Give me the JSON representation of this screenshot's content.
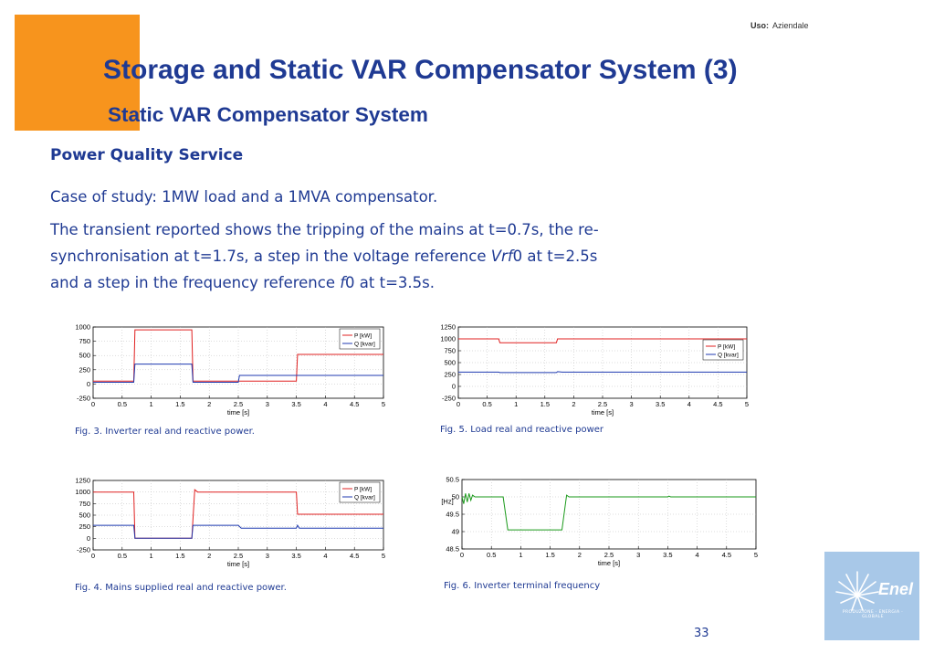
{
  "header": {
    "uso_label": "Uso:",
    "uso_value": "Aziendale",
    "title": "Storage and Static VAR Compensator System (3)",
    "subtitle": "Static VAR Compensator System"
  },
  "body": {
    "section_heading": "Power Quality Service",
    "case_of_study": "Case of study: 1MW load and a 1MVA compensator.",
    "transient_line1": "The transient reported shows the tripping of the mains at t=0.7s, the re-",
    "transient_line2_a": "synchronisation at t=1.7s, a step in the voltage reference ",
    "transient_line2_em": "Vrf",
    "transient_line2_b": "0 at t=2.5s",
    "transient_line3_a": "and a step in the frequency reference ",
    "transient_line3_em": "f",
    "transient_line3_b": "0 at t=3.5s."
  },
  "captions": {
    "fig3": "Fig. 3. Inverter real and reactive power.",
    "fig4": "Fig. 4. Mains supplied real and reactive power.",
    "fig5": "Fig. 5. Load real and reactive power",
    "fig6": "Fig. 6. Inverter terminal frequency"
  },
  "footer": {
    "page_number": "33",
    "logo_name": "Enel",
    "logo_subtitle": "PRODUZIONE · ENERGIA · GLOBALE"
  },
  "colors": {
    "title_blue": "#1f3a93",
    "accent_orange": "#f7941d",
    "real_power": "#e02020",
    "reactive_power": "#1f3ab0",
    "frequency": "#1a9a1a",
    "logo_bg": "#a8c8e8"
  },
  "chart_data": [
    {
      "id": "fig3",
      "type": "line",
      "xlabel": "time [s]",
      "ylabel": "",
      "xlim": [
        0,
        5
      ],
      "ylim": [
        -250,
        1000
      ],
      "xticks": [
        "0",
        "0.5",
        "1",
        "1.5",
        "2",
        "2.5",
        "3",
        "3.5",
        "4",
        "4.5",
        "5"
      ],
      "yticks": [
        "1000",
        "750",
        "500",
        "250",
        "0",
        "-250"
      ],
      "grid": true,
      "legend": "top-right",
      "series": [
        {
          "name": "P [kW]",
          "color": "#e02020",
          "points": [
            [
              0,
              50
            ],
            [
              0.7,
              50
            ],
            [
              0.72,
              950
            ],
            [
              1.7,
              950
            ],
            [
              1.72,
              50
            ],
            [
              2.5,
              50
            ],
            [
              3.5,
              50
            ],
            [
              3.52,
              520
            ],
            [
              5,
              520
            ]
          ]
        },
        {
          "name": "Q [kvar]",
          "color": "#1f3ab0",
          "points": [
            [
              0,
              30
            ],
            [
              0.7,
              30
            ],
            [
              0.72,
              350
            ],
            [
              1.7,
              350
            ],
            [
              1.72,
              30
            ],
            [
              2.5,
              30
            ],
            [
              2.52,
              150
            ],
            [
              3.5,
              150
            ],
            [
              3.52,
              150
            ],
            [
              5,
              150
            ]
          ]
        }
      ]
    },
    {
      "id": "fig4",
      "type": "line",
      "xlabel": "time [s]",
      "ylabel": "",
      "xlim": [
        0,
        5
      ],
      "ylim": [
        -250,
        1250
      ],
      "xticks": [
        "0",
        "0.5",
        "1",
        "1.5",
        "2",
        "2.5",
        "3",
        "3.5",
        "4",
        "4.5",
        "5"
      ],
      "yticks": [
        "1250",
        "1000",
        "750",
        "500",
        "250",
        "0",
        "-250"
      ],
      "grid": true,
      "legend": "top-right",
      "series": [
        {
          "name": "P [kW]",
          "color": "#e02020",
          "points": [
            [
              0,
              1000
            ],
            [
              0.7,
              1000
            ],
            [
              0.72,
              0
            ],
            [
              1.7,
              0
            ],
            [
              1.75,
              1050
            ],
            [
              1.8,
              1000
            ],
            [
              3.5,
              1000
            ],
            [
              3.52,
              520
            ],
            [
              5,
              520
            ]
          ]
        },
        {
          "name": "Q [kvar]",
          "color": "#1f3ab0",
          "points": [
            [
              0,
              280
            ],
            [
              0.7,
              280
            ],
            [
              0.72,
              0
            ],
            [
              1.7,
              0
            ],
            [
              1.72,
              280
            ],
            [
              2.5,
              280
            ],
            [
              2.55,
              220
            ],
            [
              3.5,
              220
            ],
            [
              3.52,
              280
            ],
            [
              3.55,
              220
            ],
            [
              5,
              220
            ]
          ]
        }
      ]
    },
    {
      "id": "fig5",
      "type": "line",
      "xlabel": "time [s]",
      "ylabel": "",
      "xlim": [
        0,
        5
      ],
      "ylim": [
        -250,
        1250
      ],
      "xticks": [
        "0",
        "0.5",
        "1",
        "1.5",
        "2",
        "2.5",
        "3",
        "3.5",
        "4",
        "4.5",
        "5"
      ],
      "yticks": [
        "1250",
        "1000",
        "750",
        "500",
        "250",
        "0",
        "-250"
      ],
      "grid": true,
      "legend": "top-right",
      "series": [
        {
          "name": "P [kW]",
          "color": "#e02020",
          "points": [
            [
              0,
              1000
            ],
            [
              0.7,
              1000
            ],
            [
              0.72,
              920
            ],
            [
              1.7,
              920
            ],
            [
              1.72,
              1000
            ],
            [
              5,
              1000
            ]
          ]
        },
        {
          "name": "Q [kvar]",
          "color": "#1f3ab0",
          "points": [
            [
              0,
              300
            ],
            [
              0.7,
              300
            ],
            [
              0.72,
              290
            ],
            [
              1.7,
              290
            ],
            [
              1.72,
              310
            ],
            [
              1.8,
              300
            ],
            [
              5,
              300
            ]
          ]
        }
      ]
    },
    {
      "id": "fig6",
      "type": "line",
      "xlabel": "time [s]",
      "ylabel": "[Hz]",
      "xlim": [
        0,
        5
      ],
      "ylim": [
        48.5,
        50.5
      ],
      "xticks": [
        "0",
        "0.5",
        "1",
        "1.5",
        "2",
        "2.5",
        "3",
        "3.5",
        "4",
        "4.5",
        "5"
      ],
      "yticks": [
        "50.5",
        "50",
        "49.5",
        "49",
        "48.5"
      ],
      "grid": true,
      "legend": "none",
      "series": [
        {
          "name": "",
          "color": "#1a9a1a",
          "points": [
            [
              0,
              50
            ],
            [
              0.03,
              49.8
            ],
            [
              0.06,
              50.1
            ],
            [
              0.09,
              49.85
            ],
            [
              0.12,
              50.1
            ],
            [
              0.15,
              49.9
            ],
            [
              0.18,
              50.05
            ],
            [
              0.22,
              50
            ],
            [
              0.7,
              50
            ],
            [
              0.78,
              49.05
            ],
            [
              1.7,
              49.05
            ],
            [
              1.78,
              50.05
            ],
            [
              1.82,
              50
            ],
            [
              3.5,
              50
            ],
            [
              3.52,
              50.02
            ],
            [
              3.55,
              50
            ],
            [
              5,
              50
            ]
          ]
        }
      ]
    }
  ]
}
